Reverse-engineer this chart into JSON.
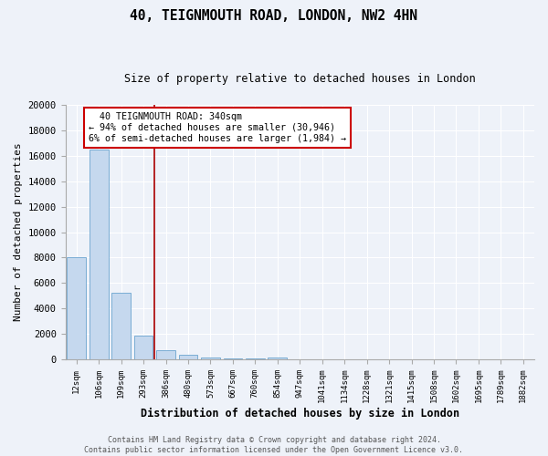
{
  "title1": "40, TEIGNMOUTH ROAD, LONDON, NW2 4HN",
  "title2": "Size of property relative to detached houses in London",
  "xlabel": "Distribution of detached houses by size in London",
  "ylabel": "Number of detached properties",
  "bar_color": "#c5d8ee",
  "bar_edge_color": "#7aadd4",
  "red_line_color": "#aa0000",
  "annotation_box_color": "#cc0000",
  "categories": [
    "12sqm",
    "106sqm",
    "199sqm",
    "293sqm",
    "386sqm",
    "480sqm",
    "573sqm",
    "667sqm",
    "760sqm",
    "854sqm",
    "947sqm",
    "1041sqm",
    "1134sqm",
    "1228sqm",
    "1321sqm",
    "1415sqm",
    "1508sqm",
    "1602sqm",
    "1695sqm",
    "1789sqm",
    "1882sqm"
  ],
  "values": [
    8050,
    16500,
    5200,
    1850,
    750,
    370,
    175,
    90,
    45,
    130,
    0,
    0,
    0,
    0,
    0,
    0,
    0,
    0,
    0,
    0,
    0
  ],
  "ylim": [
    0,
    20000
  ],
  "red_line_x": 3.5,
  "annotation_text": "  40 TEIGNMOUTH ROAD: 340sqm\n← 94% of detached houses are smaller (30,946)\n6% of semi-detached houses are larger (1,984) →",
  "footer_text": "Contains HM Land Registry data © Crown copyright and database right 2024.\nContains public sector information licensed under the Open Government Licence v3.0.",
  "bg_color": "#eef2f9",
  "plot_bg_color": "#eef2f9",
  "yticks": [
    0,
    2000,
    4000,
    6000,
    8000,
    10000,
    12000,
    14000,
    16000,
    18000,
    20000
  ]
}
